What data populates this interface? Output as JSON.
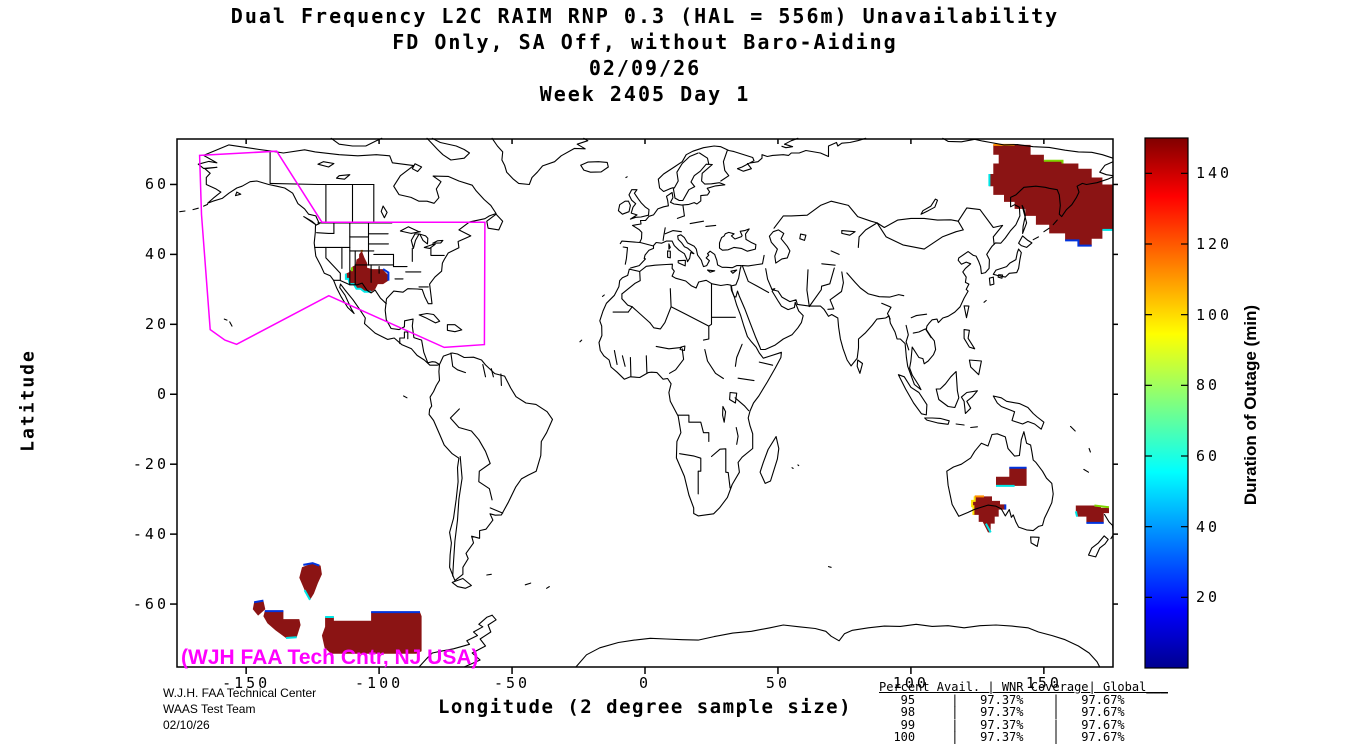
{
  "figure": {
    "title_lines": [
      "Dual Frequency L2C RAIM RNP 0.3 (HAL = 556m) Unavailability",
      "FD Only, SA Off, without Baro-Aiding",
      "02/09/26",
      "Week 2405 Day 1"
    ],
    "x_axis": {
      "label": "Longitude (2 degree sample size)",
      "ticks": [
        -150,
        -100,
        -50,
        0,
        50,
        100,
        150
      ]
    },
    "y_axis": {
      "label": "Latitude",
      "ticks": [
        60,
        40,
        20,
        0,
        -20,
        -40,
        -60
      ]
    },
    "colorbar": {
      "label": "Duration of Outage (min)",
      "ticks": [
        20,
        40,
        60,
        80,
        100,
        120,
        140
      ],
      "min": 0,
      "max": 150
    },
    "watermark": "(WJH FAA Tech Cntr, NJ USA)",
    "credits": [
      "W.J.H. FAA Technical Center",
      "WAAS Test Team",
      "02/10/26"
    ],
    "stats_table": {
      "header": "Percent Avail. | WNR Coverage| Global___",
      "rows": [
        {
          "percent_avail": "95",
          "wnr_coverage": "97.37%",
          "global": "97.67%"
        },
        {
          "percent_avail": "98",
          "wnr_coverage": "97.37%",
          "global": "97.67%"
        },
        {
          "percent_avail": "99",
          "wnr_coverage": "97.37%",
          "global": "97.67%"
        },
        {
          "percent_avail": "100",
          "wnr_coverage": "97.37%",
          "global": "97.67%"
        }
      ]
    }
  },
  "colors": {
    "outage_fill": "#8b1414",
    "coverage_boundary": "#ff00ff",
    "linework": "#000000",
    "jet_stops": [
      "#00008f",
      "#0000ff",
      "#00ffff",
      "#ffff00",
      "#ff0000",
      "#800000"
    ]
  },
  "chart_data": {
    "type": "heatmap",
    "subtype": "geographic-outage-map",
    "title": "Dual Frequency L2C RAIM RNP 0.3 (HAL = 556m) Unavailability",
    "date": "02/09/26",
    "week": "Week 2405 Day 1",
    "xlabel": "Longitude (2 degree sample size)",
    "ylabel": "Latitude",
    "lon_range": [
      -176,
      176
    ],
    "lat_range": [
      -78,
      73
    ],
    "colorbar": {
      "label": "Duration of Outage (min)",
      "range": [
        0,
        150
      ],
      "ticks": [
        20,
        40,
        60,
        80,
        100,
        120,
        140
      ],
      "colormap": "jet"
    },
    "availability_stats": [
      {
        "percent_avail": 95,
        "wnr_coverage": "97.37%",
        "global": "97.67%"
      },
      {
        "percent_avail": 98,
        "wnr_coverage": "97.37%",
        "global": "97.67%"
      },
      {
        "percent_avail": 99,
        "wnr_coverage": "97.37%",
        "global": "97.67%"
      },
      {
        "percent_avail": 100,
        "wnr_coverage": "97.37%",
        "global": "97.67%"
      }
    ],
    "outage_minutes_peak": 150,
    "outage_regions": [
      {
        "name": "us-four-corners",
        "polygon": [
          [
            -106.5,
            41
          ],
          [
            -105.5,
            39
          ],
          [
            -104.5,
            37.5
          ],
          [
            -104.5,
            36.2
          ],
          [
            -102.5,
            35.8
          ],
          [
            -98.5,
            35.8
          ],
          [
            -98,
            35.2
          ],
          [
            -96.5,
            34
          ],
          [
            -96.5,
            32.5
          ],
          [
            -98.5,
            31.5
          ],
          [
            -100.5,
            31.5
          ],
          [
            -101.5,
            30
          ],
          [
            -103,
            29.3
          ],
          [
            -105.5,
            29.3
          ],
          [
            -107,
            30.2
          ],
          [
            -108.5,
            30.2
          ],
          [
            -109.5,
            31.5
          ],
          [
            -111,
            31.5
          ],
          [
            -111.5,
            33
          ],
          [
            -112.5,
            33.2
          ],
          [
            -112.5,
            34.5
          ],
          [
            -111,
            35
          ],
          [
            -110,
            36.5
          ],
          [
            -108.8,
            37
          ],
          [
            -108.5,
            38.5
          ],
          [
            -107.5,
            39
          ],
          [
            -107.5,
            40
          ]
        ]
      },
      {
        "name": "northeast-asia-okhotsk",
        "polygon": [
          [
            131,
            71.3
          ],
          [
            145,
            71.3
          ],
          [
            145,
            68.5
          ],
          [
            150,
            68.5
          ],
          [
            150,
            66.8
          ],
          [
            157,
            66.8
          ],
          [
            157,
            66
          ],
          [
            163,
            66
          ],
          [
            163,
            64.5
          ],
          [
            168,
            64.5
          ],
          [
            168,
            62
          ],
          [
            172,
            62
          ],
          [
            172,
            60
          ],
          [
            176,
            60
          ],
          [
            176,
            47
          ],
          [
            172,
            47
          ],
          [
            172,
            44.5
          ],
          [
            168,
            44.5
          ],
          [
            168,
            42.5
          ],
          [
            163,
            42.5
          ],
          [
            163,
            44
          ],
          [
            158,
            44
          ],
          [
            158,
            46
          ],
          [
            152,
            46
          ],
          [
            152,
            48.5
          ],
          [
            147,
            48.5
          ],
          [
            147,
            51
          ],
          [
            143,
            51
          ],
          [
            143,
            53
          ],
          [
            139,
            53
          ],
          [
            139,
            55
          ],
          [
            135,
            55
          ],
          [
            135,
            57
          ],
          [
            131,
            57
          ],
          [
            131,
            59.5
          ],
          [
            129.5,
            59.5
          ],
          [
            129.5,
            63
          ],
          [
            131,
            63
          ],
          [
            131,
            66
          ],
          [
            133,
            66
          ],
          [
            133,
            68.5
          ],
          [
            131,
            68.5
          ]
        ]
      },
      {
        "name": "australia-north",
        "polygon": [
          [
            137,
            -21
          ],
          [
            143.5,
            -21
          ],
          [
            143.5,
            -26.2
          ],
          [
            132,
            -26.2
          ],
          [
            132,
            -23.6
          ],
          [
            137,
            -23.6
          ]
        ]
      },
      {
        "name": "australia-south",
        "polygon": [
          [
            124,
            -29.2
          ],
          [
            130.5,
            -29.2
          ],
          [
            130.5,
            -30.5
          ],
          [
            133.5,
            -30.5
          ],
          [
            133.5,
            -31.5
          ],
          [
            135.5,
            -31.5
          ],
          [
            135.5,
            -33
          ],
          [
            133,
            -33
          ],
          [
            133,
            -35
          ],
          [
            131.5,
            -35
          ],
          [
            131.5,
            -37
          ],
          [
            130,
            -37
          ],
          [
            130,
            -39.5
          ],
          [
            129,
            -39.5
          ],
          [
            127,
            -36.5
          ],
          [
            125.5,
            -36.5
          ],
          [
            125.5,
            -34.5
          ],
          [
            123.5,
            -34.5
          ],
          [
            123.5,
            -32
          ],
          [
            123,
            -32
          ],
          [
            123,
            -30.5
          ],
          [
            124,
            -30.5
          ]
        ]
      },
      {
        "name": "tasman-sea",
        "polygon": [
          [
            162,
            -31.8
          ],
          [
            171.5,
            -31.8
          ],
          [
            171.5,
            -32.5
          ],
          [
            174.5,
            -32.5
          ],
          [
            174.5,
            -34
          ],
          [
            172.5,
            -34
          ],
          [
            172.5,
            -36.8
          ],
          [
            166,
            -36.8
          ],
          [
            166,
            -35
          ],
          [
            162.5,
            -35
          ],
          [
            162.5,
            -33.5
          ],
          [
            162,
            -33.5
          ]
        ]
      },
      {
        "name": "south-pacific-round",
        "polygon": [
          [
            -129,
            -49.5
          ],
          [
            -125,
            -48.3
          ],
          [
            -122,
            -49
          ],
          [
            -121.5,
            -51.5
          ],
          [
            -123,
            -54
          ],
          [
            -124.5,
            -57
          ],
          [
            -126,
            -58.8
          ],
          [
            -128,
            -56
          ],
          [
            -130,
            -52.5
          ]
        ]
      },
      {
        "name": "south-pacific-diamond",
        "polygon": [
          [
            -147,
            -59.5
          ],
          [
            -143.5,
            -59
          ],
          [
            -142.8,
            -61.5
          ],
          [
            -145.5,
            -63.3
          ],
          [
            -147.5,
            -61.5
          ]
        ]
      },
      {
        "name": "south-pacific-mid",
        "polygon": [
          [
            -143,
            -62
          ],
          [
            -136,
            -62
          ],
          [
            -136,
            -64.3
          ],
          [
            -130,
            -64.3
          ],
          [
            -129.5,
            -66
          ],
          [
            -131,
            -69.5
          ],
          [
            -135,
            -69.7
          ],
          [
            -139,
            -67.5
          ],
          [
            -142,
            -65.5
          ],
          [
            -143.5,
            -63.5
          ]
        ]
      },
      {
        "name": "south-pacific-large",
        "polygon": [
          [
            -120.3,
            -63.7
          ],
          [
            -117,
            -63.7
          ],
          [
            -117,
            -64.8
          ],
          [
            -103,
            -64.8
          ],
          [
            -103,
            -62.3
          ],
          [
            -84.6,
            -62.3
          ],
          [
            -84,
            -63.5
          ],
          [
            -84,
            -73.5
          ],
          [
            -86,
            -74.2
          ],
          [
            -118,
            -74.2
          ],
          [
            -120.5,
            -72.5
          ],
          [
            -121.5,
            -69
          ],
          [
            -120.3,
            -66.5
          ]
        ]
      }
    ],
    "edge_artifacts": [
      {
        "color": "#00e5e5",
        "points": [
          [
            -112.5,
            34.5
          ],
          [
            -112.5,
            33
          ],
          [
            -111.5,
            33
          ],
          [
            -111,
            31.5
          ],
          [
            -109.5,
            31.5
          ],
          [
            -108.5,
            30.2
          ],
          [
            -107,
            30.2
          ],
          [
            -105.5,
            29.3
          ],
          [
            -103,
            29.3
          ]
        ]
      },
      {
        "color": "#0033dd",
        "points": [
          [
            -98.5,
            35.8
          ],
          [
            -96.5,
            34.8
          ],
          [
            -96.5,
            32.5
          ]
        ]
      },
      {
        "color": "#ff9000",
        "points": [
          [
            -106.9,
            41
          ],
          [
            -106.1,
            41
          ]
        ]
      },
      {
        "color": "#7fd400",
        "points": [
          [
            -110.2,
            36.3
          ],
          [
            -110.2,
            35.2
          ]
        ]
      },
      {
        "color": "#ff9000",
        "points": [
          [
            131,
            71.3
          ],
          [
            139,
            71.3
          ]
        ]
      },
      {
        "color": "#7fd400",
        "points": [
          [
            150,
            66.8
          ],
          [
            157,
            66.8
          ],
          [
            157,
            66
          ]
        ]
      },
      {
        "color": "#00e5e5",
        "points": [
          [
            129.5,
            59.5
          ],
          [
            129.5,
            63
          ]
        ]
      },
      {
        "color": "#0033dd",
        "points": [
          [
            158,
            44
          ],
          [
            163,
            44
          ],
          [
            163,
            42.5
          ],
          [
            168,
            42.5
          ]
        ]
      },
      {
        "color": "#00e5e5",
        "points": [
          [
            172,
            47
          ],
          [
            176,
            47
          ]
        ]
      },
      {
        "color": "#0033dd",
        "points": [
          [
            137,
            -21
          ],
          [
            143.5,
            -21
          ]
        ]
      },
      {
        "color": "#00e5e5",
        "points": [
          [
            132,
            -26.2
          ],
          [
            139,
            -26.2
          ]
        ]
      },
      {
        "color": "#ffe200",
        "points": [
          [
            123.5,
            -34.5
          ],
          [
            123.5,
            -32
          ],
          [
            123,
            -32
          ],
          [
            123,
            -30.5
          ],
          [
            124,
            -30.5
          ],
          [
            124,
            -29.2
          ]
        ]
      },
      {
        "color": "#ff9000",
        "points": [
          [
            124,
            -29.2
          ],
          [
            127.5,
            -29.2
          ]
        ]
      },
      {
        "color": "#0033dd",
        "points": [
          [
            135.5,
            -31.5
          ],
          [
            135.5,
            -33
          ]
        ]
      },
      {
        "color": "#00e5e5",
        "points": [
          [
            130,
            -39.5
          ],
          [
            128.2,
            -37
          ]
        ]
      },
      {
        "color": "#7fd400",
        "points": [
          [
            169,
            -31.8
          ],
          [
            174.5,
            -32.3
          ]
        ]
      },
      {
        "color": "#0033dd",
        "points": [
          [
            166,
            -36.8
          ],
          [
            172.5,
            -36.8
          ]
        ]
      },
      {
        "color": "#00e5e5",
        "points": [
          [
            162,
            -33.5
          ],
          [
            162.5,
            -35
          ]
        ]
      },
      {
        "color": "#0033dd",
        "points": [
          [
            -128.5,
            -48.8
          ],
          [
            -125,
            -48.3
          ],
          [
            -122.5,
            -49
          ]
        ]
      },
      {
        "color": "#00e5e5",
        "points": [
          [
            -126,
            -58.8
          ],
          [
            -128,
            -56
          ]
        ]
      },
      {
        "color": "#0033dd",
        "points": [
          [
            -147,
            -59.5
          ],
          [
            -143.5,
            -59
          ]
        ]
      },
      {
        "color": "#0033dd",
        "points": [
          [
            -143,
            -62
          ],
          [
            -136,
            -62
          ]
        ]
      },
      {
        "color": "#00e5e5",
        "points": [
          [
            -135,
            -69.7
          ],
          [
            -131,
            -69.5
          ]
        ]
      },
      {
        "color": "#0033dd",
        "points": [
          [
            -103,
            -62.3
          ],
          [
            -84.6,
            -62.3
          ]
        ]
      },
      {
        "color": "#00e5e5",
        "points": [
          [
            -120.3,
            -63.7
          ],
          [
            -117,
            -63.7
          ]
        ]
      }
    ],
    "coverage_boundary": [
      [
        -167.5,
        68.3
      ],
      [
        -138.5,
        69.5
      ],
      [
        -121.5,
        49.2
      ],
      [
        -60.2,
        49.2
      ],
      [
        -60.4,
        14.2
      ],
      [
        -75.5,
        13.4
      ],
      [
        -118.9,
        28.2
      ],
      [
        -153.6,
        14.3
      ],
      [
        -158,
        15.5
      ],
      [
        -163.5,
        18.5
      ],
      [
        -166.8,
        51.4
      ]
    ]
  }
}
